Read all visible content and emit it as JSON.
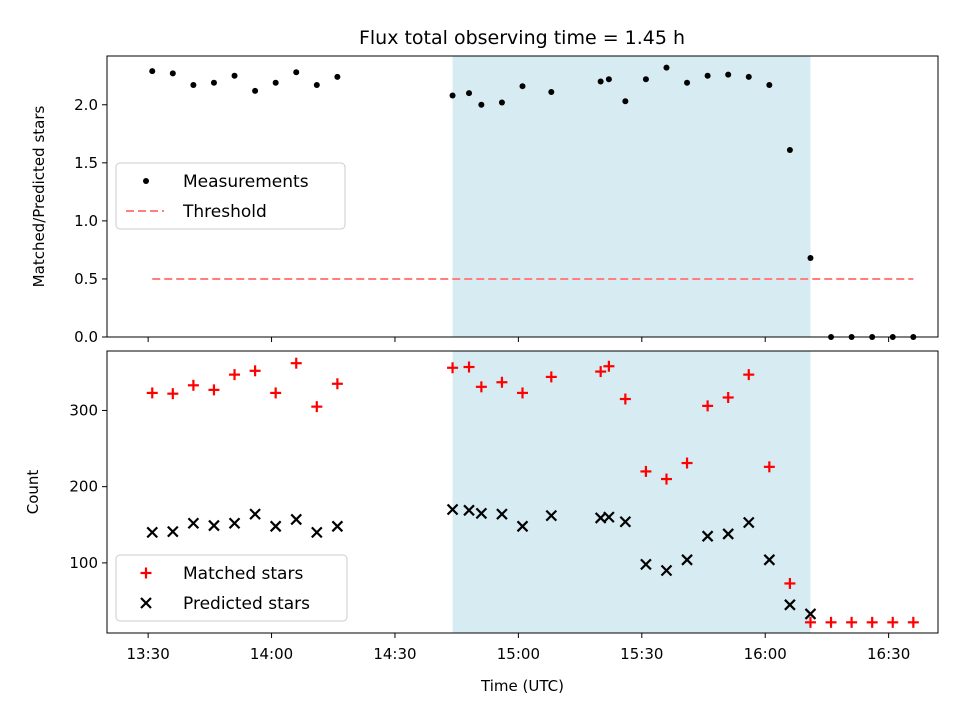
{
  "figure": {
    "title": "Flux total observing time = 1.45 h"
  },
  "chart_data": [
    {
      "type": "scatter",
      "ylabel": "Matched/Predicted stars",
      "xlim": [
        "13:20",
        "16:42"
      ],
      "ylim": [
        0,
        2.42
      ],
      "yticks": [
        "0.0",
        "0.5",
        "1.0",
        "1.5",
        "2.0"
      ],
      "highlight_span": {
        "start": "14:44",
        "end": "16:11",
        "color": "#add8e6"
      },
      "legend": {
        "position": "center-left"
      },
      "series": [
        {
          "name": "Measurements",
          "marker": "dot",
          "color": "#000000",
          "x": [
            "13:31",
            "13:36",
            "13:41",
            "13:46",
            "13:51",
            "13:56",
            "14:01",
            "14:06",
            "14:11",
            "14:16",
            "14:44",
            "14:48",
            "14:51",
            "14:56",
            "15:01",
            "15:08",
            "15:20",
            "15:22",
            "15:26",
            "15:31",
            "15:36",
            "15:41",
            "15:46",
            "15:51",
            "15:56",
            "16:01",
            "16:06",
            "16:11",
            "16:16",
            "16:21",
            "16:26",
            "16:31",
            "16:36"
          ],
          "y": [
            2.29,
            2.27,
            2.17,
            2.19,
            2.25,
            2.12,
            2.19,
            2.28,
            2.17,
            2.24,
            2.08,
            2.1,
            2.0,
            2.02,
            2.16,
            2.11,
            2.2,
            2.22,
            2.03,
            2.22,
            2.32,
            2.19,
            2.25,
            2.26,
            2.24,
            2.17,
            1.61,
            0.68,
            0.0,
            0.0,
            0.0,
            0.0,
            0.0
          ]
        },
        {
          "name": "Threshold",
          "style": "dashed",
          "color": "#ff7f7f",
          "x": [
            "13:31",
            "16:36"
          ],
          "y": [
            0.5,
            0.5
          ]
        }
      ]
    },
    {
      "type": "scatter",
      "xlabel": "Time (UTC)",
      "ylabel": "Count",
      "xlim": [
        "13:20",
        "16:42"
      ],
      "ylim": [
        8,
        378
      ],
      "xticks": [
        "13:30",
        "14:00",
        "14:30",
        "15:00",
        "15:30",
        "16:00",
        "16:30"
      ],
      "yticks": [
        "100",
        "200",
        "300"
      ],
      "highlight_span": {
        "start": "14:44",
        "end": "16:11",
        "color": "#add8e6"
      },
      "legend": {
        "position": "bottom-left"
      },
      "series": [
        {
          "name": "Matched stars",
          "marker": "plus",
          "color": "#ff0000",
          "x": [
            "13:31",
            "13:36",
            "13:41",
            "13:46",
            "13:51",
            "13:56",
            "14:01",
            "14:06",
            "14:11",
            "14:16",
            "14:44",
            "14:48",
            "14:51",
            "14:56",
            "15:01",
            "15:08",
            "15:20",
            "15:22",
            "15:26",
            "15:31",
            "15:36",
            "15:41",
            "15:46",
            "15:51",
            "15:56",
            "16:01",
            "16:06",
            "16:11",
            "16:16",
            "16:21",
            "16:26",
            "16:31",
            "16:36"
          ],
          "y": [
            323,
            322,
            333,
            327,
            347,
            352,
            323,
            362,
            305,
            335,
            356,
            357,
            331,
            337,
            323,
            344,
            351,
            358,
            315,
            220,
            210,
            231,
            306,
            317,
            347,
            226,
            73,
            22,
            22,
            22,
            22,
            22,
            22
          ]
        },
        {
          "name": "Predicted stars",
          "marker": "x",
          "color": "#000000",
          "x": [
            "13:31",
            "13:36",
            "13:41",
            "13:46",
            "13:51",
            "13:56",
            "14:01",
            "14:06",
            "14:11",
            "14:16",
            "14:44",
            "14:48",
            "14:51",
            "14:56",
            "15:01",
            "15:08",
            "15:20",
            "15:22",
            "15:26",
            "15:31",
            "15:36",
            "15:41",
            "15:46",
            "15:51",
            "15:56",
            "16:01",
            "16:06",
            "16:11"
          ],
          "y": [
            140,
            141,
            152,
            149,
            152,
            164,
            148,
            157,
            140,
            148,
            170,
            169,
            165,
            164,
            148,
            162,
            159,
            160,
            154,
            98,
            90,
            104,
            135,
            138,
            153,
            104,
            45,
            33
          ]
        }
      ]
    }
  ]
}
